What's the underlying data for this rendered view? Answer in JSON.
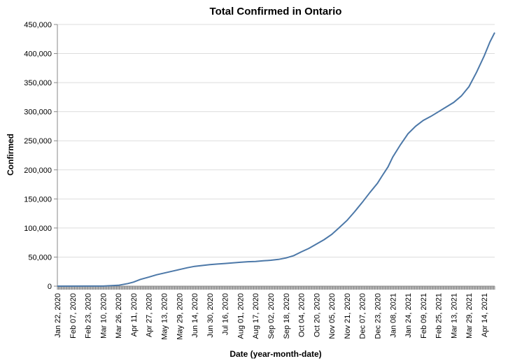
{
  "chart_data": {
    "type": "line",
    "title": "Total Confirmed in Ontario",
    "xlabel": "Date (year-month-date)",
    "ylabel": "Confirmed",
    "x_range": [
      "2020-01-22",
      "2021-04-25"
    ],
    "ylim": [
      0,
      450000
    ],
    "y_ticks": [
      0,
      50000,
      100000,
      150000,
      200000,
      250000,
      300000,
      350000,
      400000,
      450000
    ],
    "y_tick_labels": [
      "0",
      "50,000",
      "100,000",
      "150,000",
      "200,000",
      "250,000",
      "300,000",
      "350,000",
      "400,000",
      "450,000"
    ],
    "x_ticks": [
      "2020-01-22",
      "2020-02-07",
      "2020-02-23",
      "2020-03-10",
      "2020-03-26",
      "2020-04-11",
      "2020-04-27",
      "2020-05-13",
      "2020-05-29",
      "2020-06-14",
      "2020-06-30",
      "2020-07-16",
      "2020-08-01",
      "2020-08-17",
      "2020-09-02",
      "2020-09-18",
      "2020-10-04",
      "2020-10-20",
      "2020-11-05",
      "2020-11-21",
      "2020-12-07",
      "2020-12-23",
      "2021-01-08",
      "2021-01-24",
      "2021-02-09",
      "2021-02-25",
      "2021-03-13",
      "2021-03-29",
      "2021-04-14"
    ],
    "x_tick_labels": [
      "Jan 22, 2020",
      "Feb 07, 2020",
      "Feb 23, 2020",
      "Mar 10, 2020",
      "Mar 26, 2020",
      "Apr 11, 2020",
      "Apr 27, 2020",
      "May 13, 2020",
      "May 29, 2020",
      "Jun 14, 2020",
      "Jun 30, 2020",
      "Jul 16, 2020",
      "Aug 01, 2020",
      "Aug 17, 2020",
      "Sep 02, 2020",
      "Sep 18, 2020",
      "Oct 04, 2020",
      "Oct 20, 2020",
      "Nov 05, 2020",
      "Nov 21, 2020",
      "Dec 07, 2020",
      "Dec 23, 2020",
      "Jan 08, 2021",
      "Jan 24, 2021",
      "Feb 09, 2021",
      "Feb 25, 2021",
      "Mar 13, 2021",
      "Mar 29, 2021",
      "Apr 14, 2021"
    ],
    "grid": true,
    "series": [
      {
        "color": "#4c78a8",
        "x": [
          "2020-01-22",
          "2020-03-10",
          "2020-03-26",
          "2020-04-05",
          "2020-04-11",
          "2020-04-18",
          "2020-04-27",
          "2020-05-05",
          "2020-05-13",
          "2020-05-21",
          "2020-05-29",
          "2020-06-06",
          "2020-06-14",
          "2020-06-22",
          "2020-06-30",
          "2020-07-08",
          "2020-07-16",
          "2020-07-24",
          "2020-08-01",
          "2020-08-09",
          "2020-08-17",
          "2020-08-25",
          "2020-09-02",
          "2020-09-10",
          "2020-09-18",
          "2020-09-26",
          "2020-10-04",
          "2020-10-12",
          "2020-10-20",
          "2020-10-28",
          "2020-11-05",
          "2020-11-13",
          "2020-11-21",
          "2020-11-29",
          "2020-12-07",
          "2020-12-15",
          "2020-12-23",
          "2020-12-28",
          "2021-01-03",
          "2021-01-08",
          "2021-01-16",
          "2021-01-24",
          "2021-02-01",
          "2021-02-09",
          "2021-02-17",
          "2021-02-25",
          "2021-03-05",
          "2021-03-13",
          "2021-03-21",
          "2021-03-29",
          "2021-04-06",
          "2021-04-14",
          "2021-04-20",
          "2021-04-25"
        ],
        "y": [
          0,
          100,
          1500,
          4500,
          7000,
          11500,
          15500,
          19500,
          22500,
          25500,
          28500,
          31500,
          34000,
          35500,
          37000,
          38000,
          39000,
          40000,
          41000,
          42000,
          42500,
          43500,
          44500,
          46000,
          48500,
          52500,
          59000,
          65000,
          72500,
          80000,
          89000,
          101000,
          113000,
          128000,
          144000,
          161000,
          177000,
          190000,
          205000,
          222000,
          243000,
          262000,
          275000,
          285000,
          292000,
          300000,
          308000,
          316000,
          327000,
          343000,
          368000,
          396000,
          420000,
          436000
        ]
      }
    ]
  }
}
